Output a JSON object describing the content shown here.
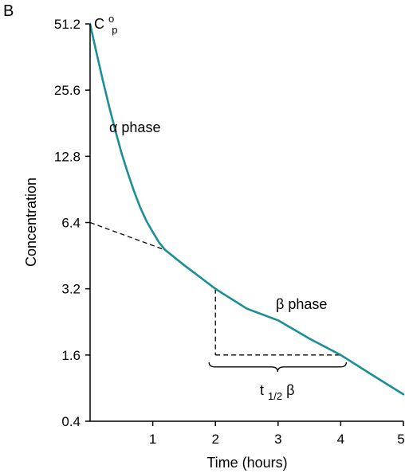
{
  "panel_label": "B",
  "chart_data": {
    "type": "line",
    "xlabel": "Time (hours)",
    "ylabel": "Concentration",
    "x_ticks": [
      1,
      2,
      3,
      4,
      5
    ],
    "y_ticks": [
      "0.4",
      "1.6",
      "3.2",
      "6.4",
      "12.8",
      "25.6",
      "51.2"
    ],
    "y_scale": "log2",
    "xlim": [
      0,
      5
    ],
    "ylim": [
      0.8,
      51.2
    ],
    "grid": false,
    "series": [
      {
        "x": [
          0,
          0.05,
          0.1,
          0.2,
          0.3,
          0.4,
          0.5,
          0.6,
          0.7,
          0.8,
          0.9,
          1.0,
          1.1,
          1.2,
          1.5,
          2.0,
          2.5,
          3.0,
          3.5,
          4.0,
          4.5,
          5.0
        ],
        "y": [
          51.2,
          44.1,
          38.1,
          28.6,
          21.8,
          16.9,
          13.3,
          10.8,
          8.9,
          7.5,
          6.5,
          5.8,
          5.2,
          4.8,
          4.1,
          3.2,
          2.6,
          2.3,
          1.9,
          1.6,
          1.3,
          1.06
        ],
        "color": "#1a8f96"
      }
    ],
    "extrapolation": {
      "x": [
        0,
        1.2
      ],
      "y": [
        6.4,
        4.8
      ]
    },
    "half_life_marker": {
      "x_start": 2,
      "x_end": 4,
      "y_start": 3.2,
      "y_end": 1.6
    },
    "annotations": {
      "initial_concentration": "C",
      "initial_superscript": "o",
      "initial_subscript": "p",
      "alpha_phase": "α phase",
      "beta_phase": "β phase",
      "half_life_main": "t",
      "half_life_sub": "1/2",
      "half_life_tail": "β"
    }
  }
}
